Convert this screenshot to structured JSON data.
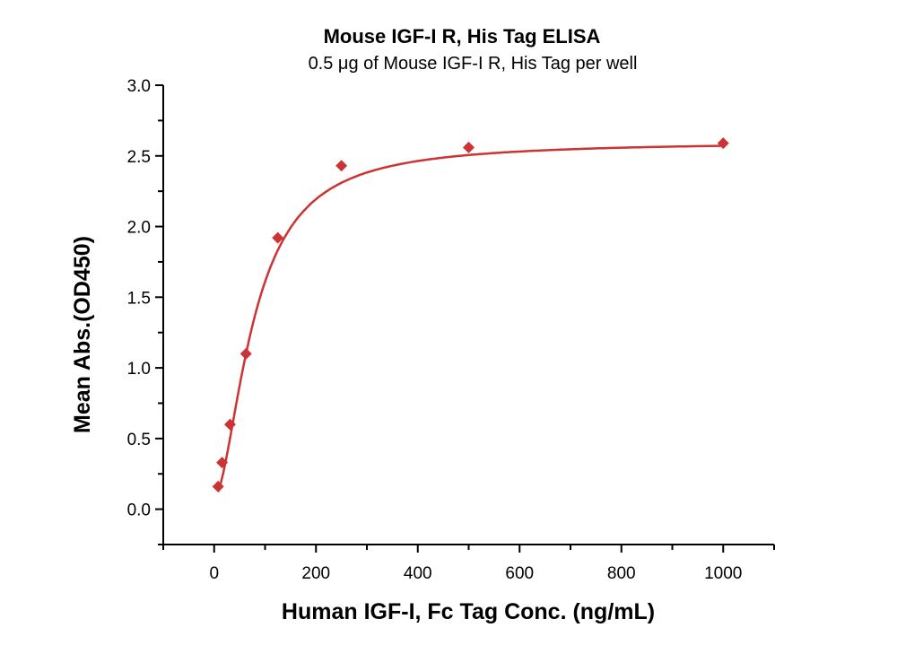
{
  "chart_data": {
    "type": "scatter",
    "title": "Mouse IGF-I R, His Tag ELISA",
    "subtitle": "0.5 μg of Mouse IGF-I R, His Tag per well",
    "xlabel": "Human IGF-I, Fc Tag Conc. (ng/mL)",
    "ylabel": "Mean Abs.(OD450)",
    "xlim": [
      -100,
      1100
    ],
    "ylim": [
      -0.25,
      3.0
    ],
    "xticks": [
      "0",
      "200",
      "400",
      "600",
      "800",
      "1000"
    ],
    "yticks": [
      "0.0",
      "0.5",
      "1.0",
      "1.5",
      "2.0",
      "2.5",
      "3.0"
    ],
    "grid": false,
    "marker": "diamond",
    "fit": "sigmoidal curve",
    "color": "#cc3333",
    "series": [
      {
        "x": [
          7.8,
          15.6,
          31.25,
          62.5,
          125,
          250,
          500,
          1000
        ],
        "y": [
          0.16,
          0.33,
          0.6,
          1.1,
          1.92,
          2.43,
          2.56,
          2.59
        ]
      }
    ]
  }
}
